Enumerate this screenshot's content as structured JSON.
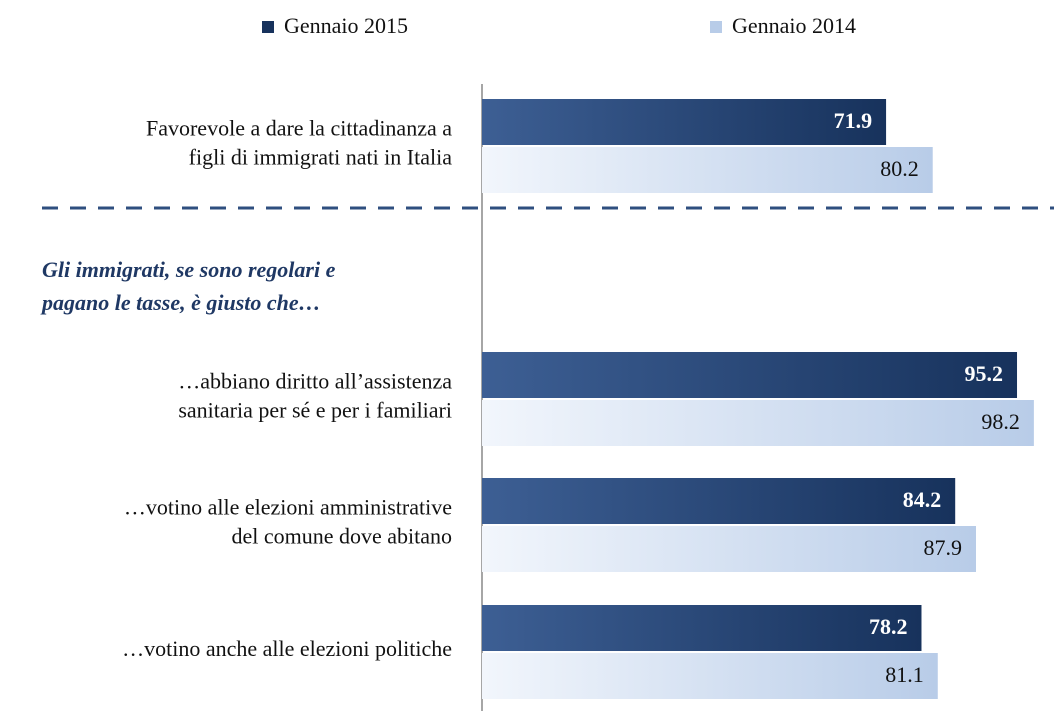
{
  "chart_data": {
    "type": "hbar",
    "categories": [
      [
        "Favorevole a dare la cittadinanza a",
        "figli di immigrati nati in Italia"
      ],
      [
        "…abbiano diritto all’assistenza",
        "sanitaria per sé e per i familiari"
      ],
      [
        "…votino alle elezioni  amministrative",
        "del comune dove abitano"
      ],
      [
        "…votino anche alle elezioni  politiche"
      ]
    ],
    "annotation": [
      "Gli immigrati, se sono regolari e",
      "pagano le tasse, è giusto che…"
    ],
    "series": [
      {
        "name": "Gennaio 2015",
        "color": "#17325c",
        "values": [
          71.9,
          95.2,
          84.2,
          78.2
        ]
      },
      {
        "name": "Gennaio 2014",
        "color": "#b8cce8",
        "values": [
          80.2,
          98.2,
          87.9,
          81.1
        ]
      }
    ],
    "xlim": [
      0,
      100
    ],
    "legend": "top"
  }
}
